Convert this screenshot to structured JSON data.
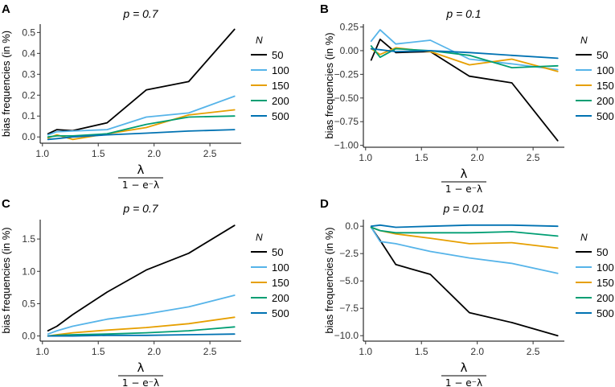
{
  "chart_data": [
    {
      "panel": "A",
      "type": "line",
      "title": "p = 0.7",
      "xlabel_num": "λ",
      "xlabel_den": "1 − e⁻λ",
      "ylabel": "bias frequencies (in %)",
      "xlim": [
        0.98,
        2.78
      ],
      "ylim": [
        -0.03,
        0.54
      ],
      "xticks": [
        1.0,
        1.5,
        2.0,
        2.5
      ],
      "xtick_labels": [
        "1.0",
        "1.5",
        "2.0",
        "2.5"
      ],
      "yticks": [
        0.0,
        0.1,
        0.2,
        0.3,
        0.4,
        0.5
      ],
      "ytick_labels": [
        "0.0",
        "0.1",
        "0.2",
        "0.3",
        "0.4",
        "0.5"
      ],
      "x": [
        1.05,
        1.13,
        1.27,
        1.58,
        1.93,
        2.31,
        2.72
      ],
      "legend_title": "N",
      "series": [
        {
          "name": "50",
          "color": "#000000",
          "values": [
            0.015,
            0.035,
            0.03,
            0.068,
            0.225,
            0.265,
            0.515
          ]
        },
        {
          "name": "100",
          "color": "#56B4E9",
          "values": [
            0.01,
            0.025,
            0.028,
            0.035,
            0.095,
            0.115,
            0.195
          ]
        },
        {
          "name": "150",
          "color": "#E69F00",
          "values": [
            -0.005,
            0.01,
            -0.012,
            0.015,
            0.045,
            0.105,
            0.13
          ]
        },
        {
          "name": "200",
          "color": "#009E73",
          "values": [
            0.0,
            0.005,
            0.005,
            0.015,
            0.06,
            0.095,
            0.1
          ]
        },
        {
          "name": "500",
          "color": "#0072B2",
          "values": [
            -0.012,
            -0.008,
            0.0,
            0.01,
            0.018,
            0.028,
            0.035
          ]
        }
      ]
    },
    {
      "panel": "B",
      "type": "line",
      "title": "p = 0.1",
      "xlabel_num": "λ",
      "xlabel_den": "1 − e⁻λ",
      "ylabel": "bias frequencies (in %)",
      "xlim": [
        0.98,
        2.78
      ],
      "ylim": [
        -1.02,
        0.28
      ],
      "xticks": [
        1.0,
        1.5,
        2.0,
        2.5
      ],
      "xtick_labels": [
        "1.0",
        "1.5",
        "2.0",
        "2.5"
      ],
      "yticks": [
        -1.0,
        -0.75,
        -0.5,
        -0.25,
        0.0,
        0.25
      ],
      "ytick_labels": [
        "−1.00",
        "−0.75",
        "−0.50",
        "−0.25",
        "0.00",
        "0.25"
      ],
      "x": [
        1.05,
        1.13,
        1.27,
        1.58,
        1.93,
        2.31,
        2.72
      ],
      "legend_title": "N",
      "series": [
        {
          "name": "50",
          "color": "#000000",
          "values": [
            -0.1,
            0.12,
            -0.02,
            -0.01,
            -0.27,
            -0.34,
            -0.95
          ]
        },
        {
          "name": "100",
          "color": "#56B4E9",
          "values": [
            0.1,
            0.22,
            0.07,
            0.11,
            -0.09,
            -0.14,
            -0.2
          ]
        },
        {
          "name": "150",
          "color": "#E69F00",
          "values": [
            0.02,
            -0.04,
            0.03,
            -0.01,
            -0.15,
            -0.09,
            -0.22
          ]
        },
        {
          "name": "200",
          "color": "#009E73",
          "values": [
            0.05,
            -0.07,
            0.02,
            0.0,
            -0.05,
            -0.18,
            -0.16
          ]
        },
        {
          "name": "500",
          "color": "#0072B2",
          "values": [
            0.02,
            0.01,
            -0.01,
            0.0,
            -0.02,
            -0.05,
            -0.08
          ]
        }
      ]
    },
    {
      "panel": "C",
      "type": "line",
      "title": "p = 0.7",
      "xlabel_num": "λ",
      "xlabel_den": "1 − e⁻λ",
      "ylabel": "bias frequencies (in %)",
      "xlim": [
        0.98,
        2.78
      ],
      "ylim": [
        -0.08,
        1.8
      ],
      "xticks": [
        1.0,
        1.5,
        2.0,
        2.5
      ],
      "xtick_labels": [
        "1.0",
        "1.5",
        "2.0",
        "2.5"
      ],
      "yticks": [
        0.0,
        0.5,
        1.0,
        1.5
      ],
      "ytick_labels": [
        "0.0",
        "0.5",
        "1.0",
        "1.5"
      ],
      "x": [
        1.05,
        1.13,
        1.27,
        1.58,
        1.93,
        2.31,
        2.72
      ],
      "legend_title": "N",
      "series": [
        {
          "name": "50",
          "color": "#000000",
          "values": [
            0.08,
            0.15,
            0.33,
            0.68,
            1.02,
            1.28,
            1.71
          ]
        },
        {
          "name": "100",
          "color": "#56B4E9",
          "values": [
            0.03,
            0.08,
            0.15,
            0.26,
            0.34,
            0.45,
            0.63
          ]
        },
        {
          "name": "150",
          "color": "#E69F00",
          "values": [
            0.0,
            0.02,
            0.05,
            0.09,
            0.13,
            0.19,
            0.29
          ]
        },
        {
          "name": "200",
          "color": "#009E73",
          "values": [
            0.0,
            0.01,
            0.02,
            0.03,
            0.05,
            0.08,
            0.14
          ]
        },
        {
          "name": "500",
          "color": "#0072B2",
          "values": [
            0.0,
            0.0,
            0.0,
            0.01,
            0.01,
            0.02,
            0.03
          ]
        }
      ]
    },
    {
      "panel": "D",
      "type": "line",
      "title": "p = 0.01",
      "xlabel_num": "λ",
      "xlabel_den": "1 − e⁻λ",
      "ylabel": "bias frequencies (in %)",
      "xlim": [
        0.98,
        2.78
      ],
      "ylim": [
        -10.5,
        0.6
      ],
      "xticks": [
        1.0,
        1.5,
        2.0,
        2.5
      ],
      "xtick_labels": [
        "1.0",
        "1.5",
        "2.0",
        "2.5"
      ],
      "yticks": [
        -10.0,
        -7.5,
        -5.0,
        -2.5,
        0.0
      ],
      "ytick_labels": [
        "−10.0",
        "−7.5",
        "−5.0",
        "−2.5",
        "0.0"
      ],
      "x": [
        1.05,
        1.13,
        1.27,
        1.58,
        1.93,
        2.31,
        2.72
      ],
      "legend_title": "N",
      "series": [
        {
          "name": "50",
          "color": "#000000",
          "values": [
            -0.1,
            -1.3,
            -3.5,
            -4.4,
            -7.9,
            -8.8,
            -10.0
          ]
        },
        {
          "name": "100",
          "color": "#56B4E9",
          "values": [
            -0.1,
            -1.4,
            -1.6,
            -2.3,
            -2.9,
            -3.4,
            -4.3
          ]
        },
        {
          "name": "150",
          "color": "#E69F00",
          "values": [
            -0.1,
            -0.4,
            -0.7,
            -1.1,
            -1.6,
            -1.5,
            -2.0
          ]
        },
        {
          "name": "200",
          "color": "#009E73",
          "values": [
            -0.1,
            -0.4,
            -0.6,
            -0.6,
            -0.6,
            -0.5,
            -0.9
          ]
        },
        {
          "name": "500",
          "color": "#0072B2",
          "values": [
            0.0,
            0.1,
            -0.1,
            0.0,
            0.1,
            0.1,
            0.0
          ]
        }
      ]
    }
  ]
}
